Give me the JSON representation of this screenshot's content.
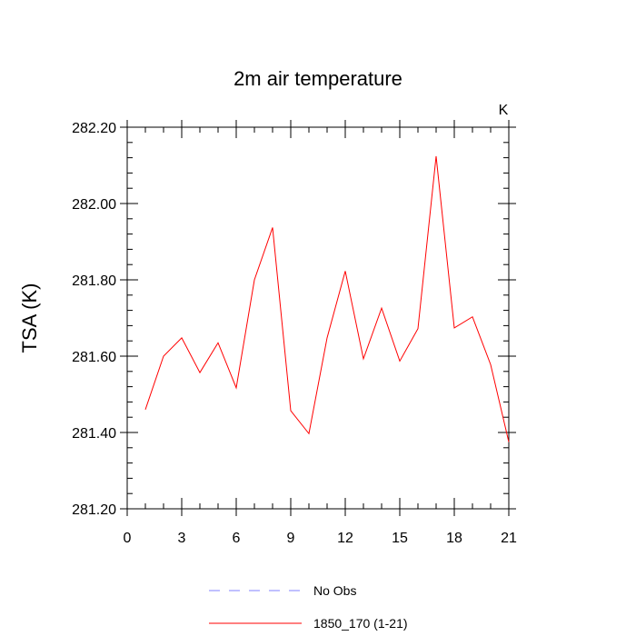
{
  "chart_data": {
    "type": "line",
    "title": "2m air temperature",
    "ylabel": "TSA  (K)",
    "xlabel": "",
    "units": "K",
    "xlim": [
      0,
      21
    ],
    "ylim": [
      281.2,
      282.2
    ],
    "xticks": [
      0,
      3,
      6,
      9,
      12,
      15,
      18,
      21
    ],
    "xtick_labels": [
      "0",
      "3",
      "6",
      "9",
      "12",
      "15",
      "18",
      "21"
    ],
    "yticks": [
      281.2,
      281.4,
      281.6,
      281.8,
      282.0,
      282.2
    ],
    "ytick_labels": [
      "281.20",
      "281.40",
      "281.60",
      "281.80",
      "282.00",
      "282.20"
    ],
    "series": [
      {
        "name": "1850_170 (1-21)",
        "color": "#ff0000",
        "dash": "solid",
        "x": [
          1,
          2,
          3,
          4,
          5,
          6,
          7,
          8,
          9,
          10,
          11,
          12,
          13,
          14,
          15,
          16,
          17,
          18,
          19,
          20,
          21
        ],
        "y": [
          281.46,
          281.6,
          281.648,
          281.557,
          281.635,
          281.517,
          281.8,
          281.937,
          281.457,
          281.397,
          281.648,
          281.823,
          281.593,
          281.726,
          281.587,
          281.672,
          282.124,
          281.674,
          281.703,
          281.578,
          281.375
        ]
      }
    ],
    "legend": [
      {
        "label": "No Obs",
        "color": "#8080ff",
        "dash": "dashed"
      },
      {
        "label": "1850_170 (1-21)",
        "color": "#ff0000",
        "dash": "solid"
      }
    ],
    "legend_position": "bottom",
    "grid": false
  }
}
